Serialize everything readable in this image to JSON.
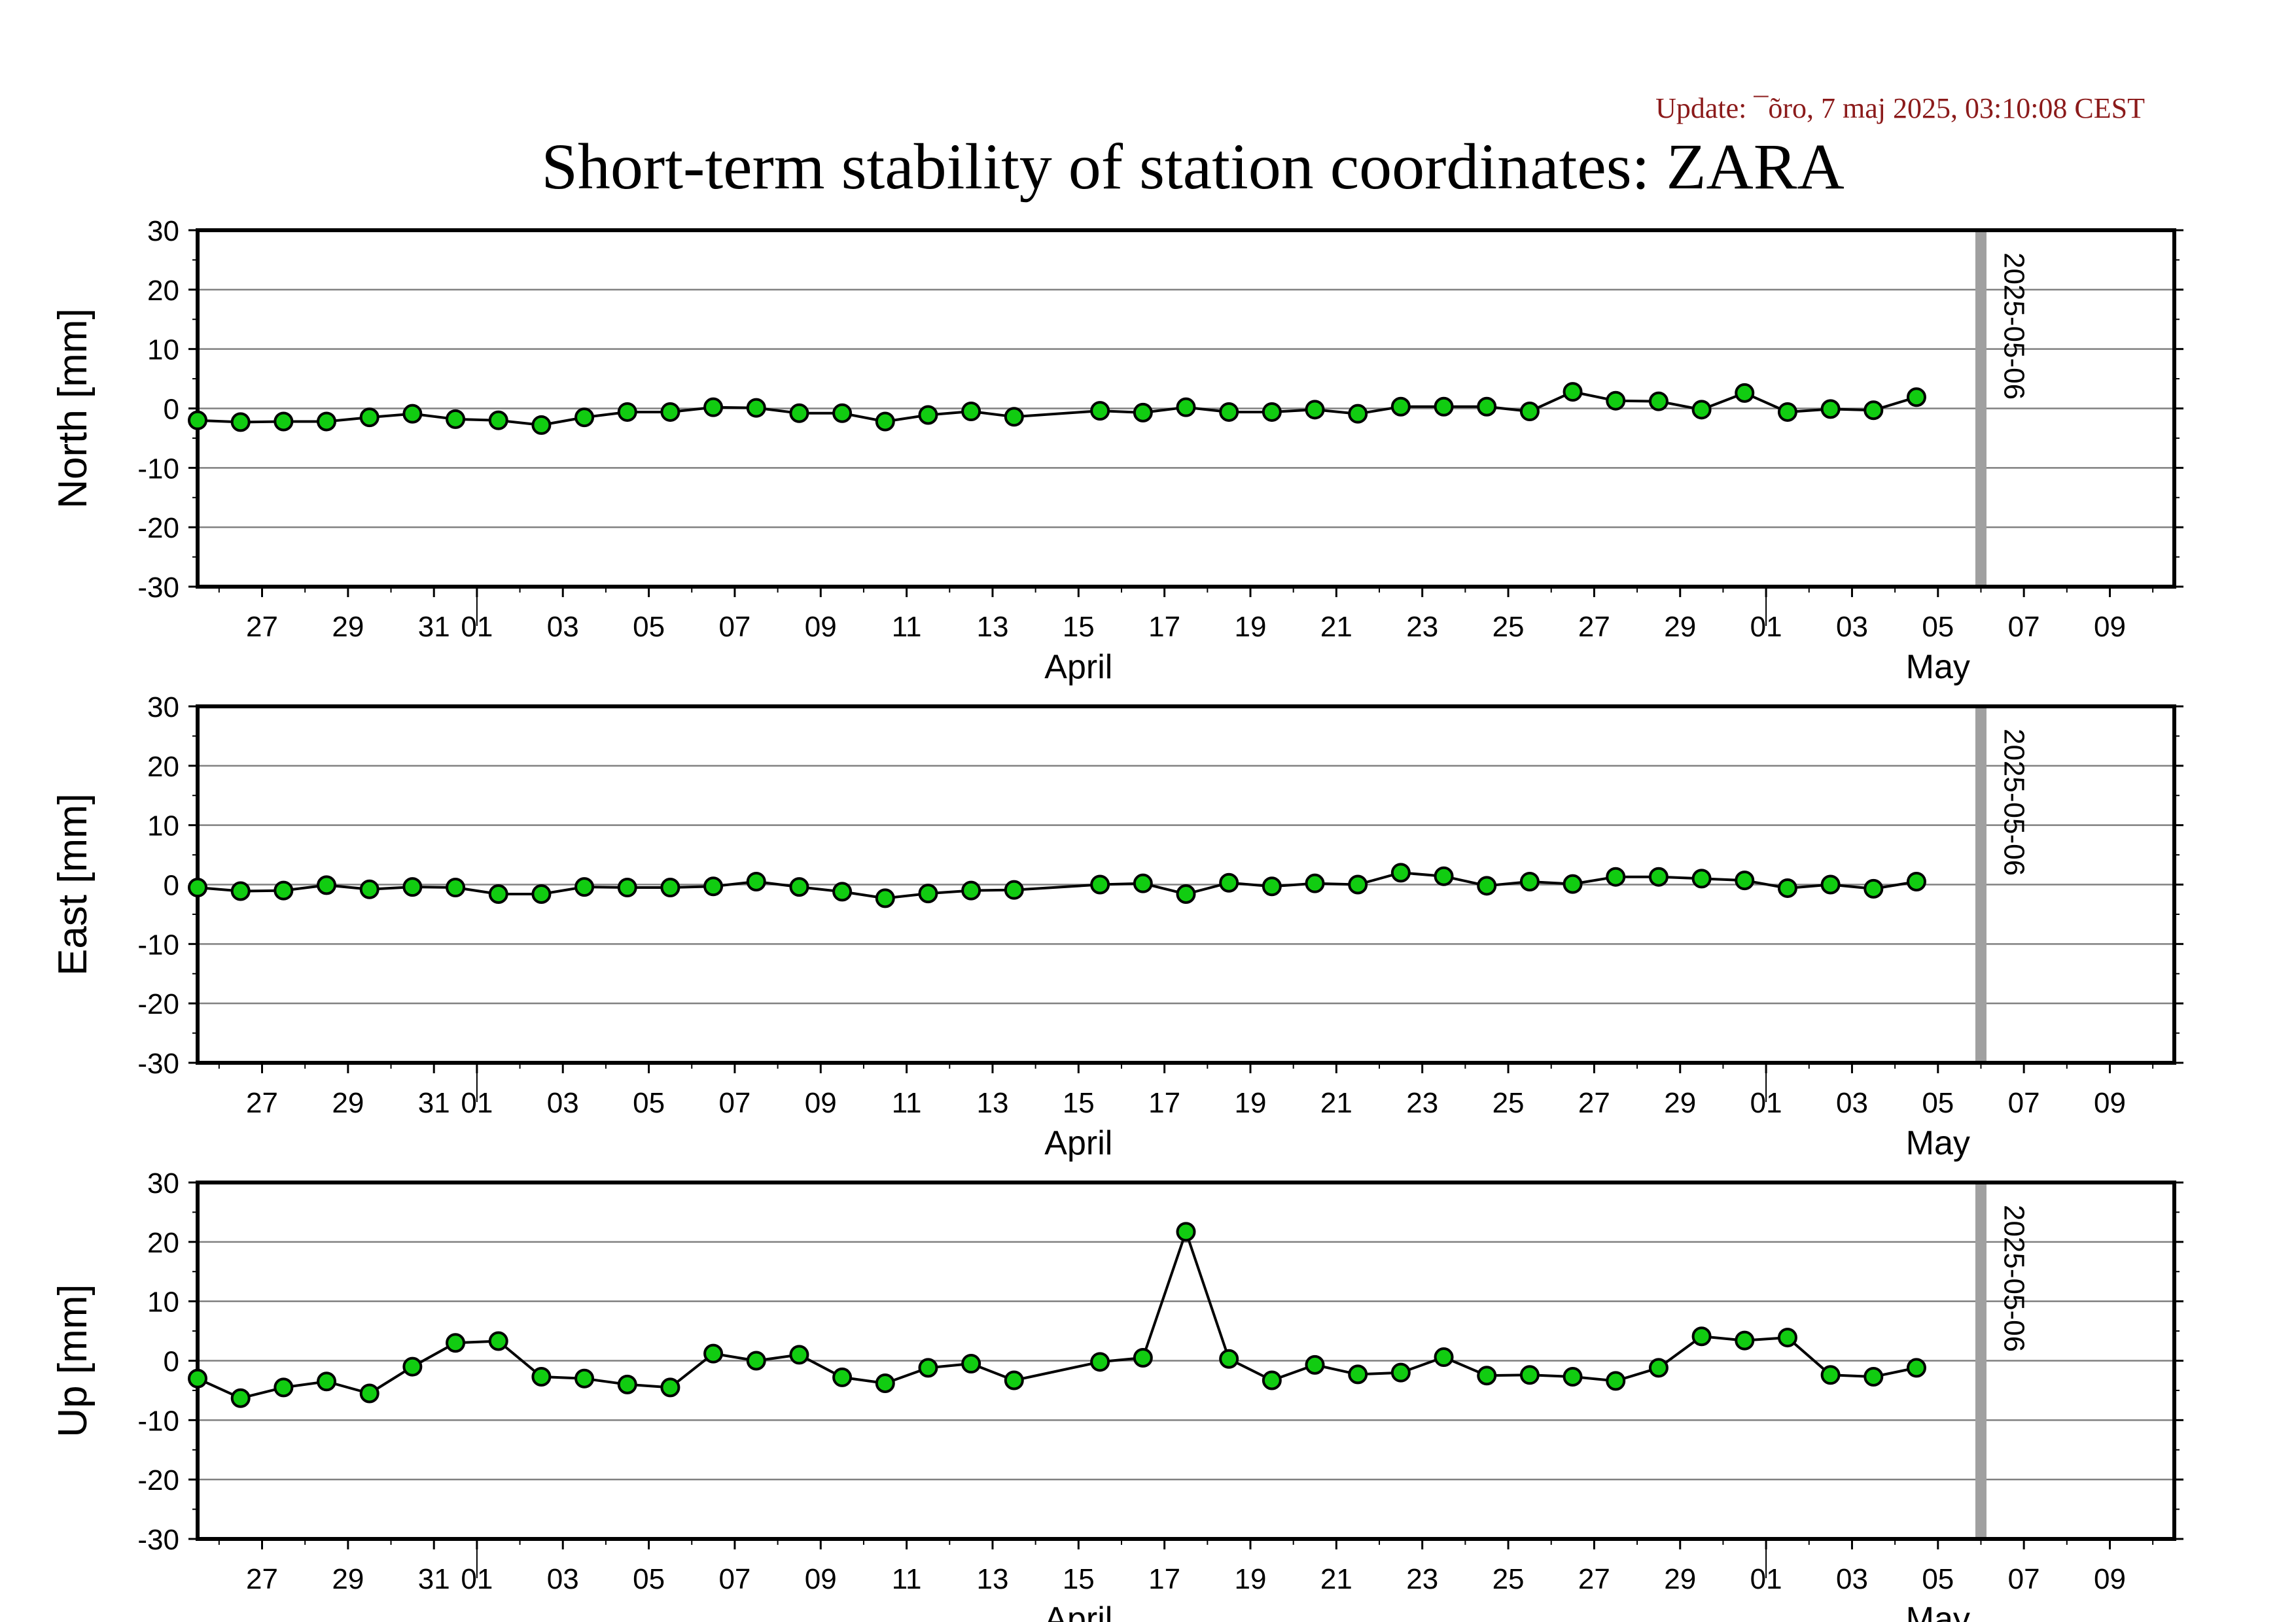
{
  "update_text": "Update: ¯õro, 7 maj 2025, 03:10:08 CEST",
  "colors": {
    "update_text": "#8b1a1a",
    "marker_fill": "#11cc11",
    "marker_stroke": "#000000",
    "line": "#000000",
    "gridline": "#808080",
    "reference_line": "#a0a0a0",
    "frame": "#000000"
  },
  "chart_data": {
    "type": "line",
    "title": "Short-term stability of station coordinates: ZARA",
    "station": "ZARA",
    "reference_date": "2025-05-06",
    "reference_label": "2025-05-06",
    "x_type": "date",
    "xlim": [
      "2025-03-25T12:00",
      "2025-05-10T12:00"
    ],
    "ylim": [
      -30,
      30
    ],
    "yticks": [
      -30,
      -20,
      -10,
      0,
      10,
      20,
      30
    ],
    "xticks": [
      {
        "date": "2025-03-27",
        "label": "27"
      },
      {
        "date": "2025-03-29",
        "label": "29"
      },
      {
        "date": "2025-03-31",
        "label": "31"
      },
      {
        "date": "2025-04-01",
        "label": "01"
      },
      {
        "date": "2025-04-03",
        "label": "03"
      },
      {
        "date": "2025-04-05",
        "label": "05"
      },
      {
        "date": "2025-04-07",
        "label": "07"
      },
      {
        "date": "2025-04-09",
        "label": "09"
      },
      {
        "date": "2025-04-11",
        "label": "11"
      },
      {
        "date": "2025-04-13",
        "label": "13"
      },
      {
        "date": "2025-04-15",
        "label": "15"
      },
      {
        "date": "2025-04-17",
        "label": "17"
      },
      {
        "date": "2025-04-19",
        "label": "19"
      },
      {
        "date": "2025-04-21",
        "label": "21"
      },
      {
        "date": "2025-04-23",
        "label": "23"
      },
      {
        "date": "2025-04-25",
        "label": "25"
      },
      {
        "date": "2025-04-27",
        "label": "27"
      },
      {
        "date": "2025-04-29",
        "label": "29"
      },
      {
        "date": "2025-05-01",
        "label": "01"
      },
      {
        "date": "2025-05-03",
        "label": "03"
      },
      {
        "date": "2025-05-05",
        "label": "05"
      },
      {
        "date": "2025-05-07",
        "label": "07"
      },
      {
        "date": "2025-05-09",
        "label": "09"
      }
    ],
    "month_boundaries": [
      "2025-04-01",
      "2025-05-01"
    ],
    "month_labels": [
      {
        "label": "April",
        "date": "2025-04-15"
      },
      {
        "label": "May",
        "date": "2025-05-05"
      }
    ],
    "grid": "horizontal",
    "panels": [
      {
        "ylabel": "North [mm]",
        "points": [
          [
            "2025-03-25T12:00",
            -2.0
          ],
          [
            "2025-03-26T12:00",
            -2.3
          ],
          [
            "2025-03-27T12:00",
            -2.2
          ],
          [
            "2025-03-28T12:00",
            -2.2
          ],
          [
            "2025-03-29T12:00",
            -1.5
          ],
          [
            "2025-03-30T12:00",
            -0.9
          ],
          [
            "2025-03-31T12:00",
            -1.8
          ],
          [
            "2025-04-01T12:00",
            -2.0
          ],
          [
            "2025-04-02T12:00",
            -2.8
          ],
          [
            "2025-04-03T12:00",
            -1.5
          ],
          [
            "2025-04-04T12:00",
            -0.6
          ],
          [
            "2025-04-05T12:00",
            -0.6
          ],
          [
            "2025-04-06T12:00",
            0.2
          ],
          [
            "2025-04-07T12:00",
            0.1
          ],
          [
            "2025-04-08T12:00",
            -0.8
          ],
          [
            "2025-04-09T12:00",
            -0.8
          ],
          [
            "2025-04-10T12:00",
            -2.2
          ],
          [
            "2025-04-11T12:00",
            -1.1
          ],
          [
            "2025-04-12T12:00",
            -0.5
          ],
          [
            "2025-04-13T12:00",
            -1.4
          ],
          [
            "2025-04-15T12:00",
            -0.4
          ],
          [
            "2025-04-16T12:00",
            -0.7
          ],
          [
            "2025-04-17T12:00",
            0.2
          ],
          [
            "2025-04-18T12:00",
            -0.6
          ],
          [
            "2025-04-19T12:00",
            -0.6
          ],
          [
            "2025-04-20T12:00",
            -0.2
          ],
          [
            "2025-04-21T12:00",
            -0.9
          ],
          [
            "2025-04-22T12:00",
            0.3
          ],
          [
            "2025-04-23T12:00",
            0.3
          ],
          [
            "2025-04-24T12:00",
            0.3
          ],
          [
            "2025-04-25T12:00",
            -0.5
          ],
          [
            "2025-04-26T12:00",
            2.8
          ],
          [
            "2025-04-27T12:00",
            1.3
          ],
          [
            "2025-04-28T12:00",
            1.2
          ],
          [
            "2025-04-29T12:00",
            -0.2
          ],
          [
            "2025-04-30T12:00",
            2.6
          ],
          [
            "2025-05-01T12:00",
            -0.6
          ],
          [
            "2025-05-02T12:00",
            -0.1
          ],
          [
            "2025-05-03T12:00",
            -0.3
          ],
          [
            "2025-05-04T12:00",
            1.9
          ]
        ]
      },
      {
        "ylabel": "East [mm]",
        "points": [
          [
            "2025-03-25T12:00",
            -0.5
          ],
          [
            "2025-03-26T12:00",
            -1.1
          ],
          [
            "2025-03-27T12:00",
            -1.0
          ],
          [
            "2025-03-28T12:00",
            -0.1
          ],
          [
            "2025-03-29T12:00",
            -0.8
          ],
          [
            "2025-03-30T12:00",
            -0.4
          ],
          [
            "2025-03-31T12:00",
            -0.5
          ],
          [
            "2025-04-01T12:00",
            -1.6
          ],
          [
            "2025-04-02T12:00",
            -1.6
          ],
          [
            "2025-04-03T12:00",
            -0.4
          ],
          [
            "2025-04-04T12:00",
            -0.5
          ],
          [
            "2025-04-05T12:00",
            -0.5
          ],
          [
            "2025-04-06T12:00",
            -0.3
          ],
          [
            "2025-04-07T12:00",
            0.5
          ],
          [
            "2025-04-08T12:00",
            -0.4
          ],
          [
            "2025-04-09T12:00",
            -1.2
          ],
          [
            "2025-04-10T12:00",
            -2.3
          ],
          [
            "2025-04-11T12:00",
            -1.5
          ],
          [
            "2025-04-12T12:00",
            -1.0
          ],
          [
            "2025-04-13T12:00",
            -0.9
          ],
          [
            "2025-04-15T12:00",
            0.0
          ],
          [
            "2025-04-16T12:00",
            0.2
          ],
          [
            "2025-04-17T12:00",
            -1.6
          ],
          [
            "2025-04-18T12:00",
            0.3
          ],
          [
            "2025-04-19T12:00",
            -0.3
          ],
          [
            "2025-04-20T12:00",
            0.2
          ],
          [
            "2025-04-21T12:00",
            0.0
          ],
          [
            "2025-04-22T12:00",
            2.0
          ],
          [
            "2025-04-23T12:00",
            1.4
          ],
          [
            "2025-04-24T12:00",
            -0.2
          ],
          [
            "2025-04-25T12:00",
            0.5
          ],
          [
            "2025-04-26T12:00",
            0.1
          ],
          [
            "2025-04-27T12:00",
            1.3
          ],
          [
            "2025-04-28T12:00",
            1.3
          ],
          [
            "2025-04-29T12:00",
            1.0
          ],
          [
            "2025-04-30T12:00",
            0.7
          ],
          [
            "2025-05-01T12:00",
            -0.6
          ],
          [
            "2025-05-02T12:00",
            0.0
          ],
          [
            "2025-05-03T12:00",
            -0.7
          ],
          [
            "2025-05-04T12:00",
            0.5
          ]
        ]
      },
      {
        "ylabel": "Up [mm]",
        "points": [
          [
            "2025-03-25T12:00",
            -3.0
          ],
          [
            "2025-03-26T12:00",
            -6.3
          ],
          [
            "2025-03-27T12:00",
            -4.5
          ],
          [
            "2025-03-28T12:00",
            -3.5
          ],
          [
            "2025-03-29T12:00",
            -5.5
          ],
          [
            "2025-03-30T12:00",
            -1.0
          ],
          [
            "2025-03-31T12:00",
            3.0
          ],
          [
            "2025-04-01T12:00",
            3.3
          ],
          [
            "2025-04-02T12:00",
            -2.7
          ],
          [
            "2025-04-03T12:00",
            -3.0
          ],
          [
            "2025-04-04T12:00",
            -4.0
          ],
          [
            "2025-04-05T12:00",
            -4.5
          ],
          [
            "2025-04-06T12:00",
            1.2
          ],
          [
            "2025-04-07T12:00",
            0.0
          ],
          [
            "2025-04-08T12:00",
            1.0
          ],
          [
            "2025-04-09T12:00",
            -2.8
          ],
          [
            "2025-04-10T12:00",
            -3.8
          ],
          [
            "2025-04-11T12:00",
            -1.2
          ],
          [
            "2025-04-12T12:00",
            -0.5
          ],
          [
            "2025-04-13T12:00",
            -3.3
          ],
          [
            "2025-04-15T12:00",
            -0.2
          ],
          [
            "2025-04-16T12:00",
            0.5
          ],
          [
            "2025-04-17T12:00",
            21.7
          ],
          [
            "2025-04-18T12:00",
            0.3
          ],
          [
            "2025-04-19T12:00",
            -3.3
          ],
          [
            "2025-04-20T12:00",
            -0.7
          ],
          [
            "2025-04-21T12:00",
            -2.3
          ],
          [
            "2025-04-22T12:00",
            -2.0
          ],
          [
            "2025-04-23T12:00",
            0.6
          ],
          [
            "2025-04-24T12:00",
            -2.5
          ],
          [
            "2025-04-25T12:00",
            -2.4
          ],
          [
            "2025-04-26T12:00",
            -2.7
          ],
          [
            "2025-04-27T12:00",
            -3.4
          ],
          [
            "2025-04-28T12:00",
            -1.2
          ],
          [
            "2025-04-29T12:00",
            4.1
          ],
          [
            "2025-04-30T12:00",
            3.4
          ],
          [
            "2025-05-01T12:00",
            3.9
          ],
          [
            "2025-05-02T12:00",
            -2.4
          ],
          [
            "2025-05-03T12:00",
            -2.7
          ],
          [
            "2025-05-04T12:00",
            -1.2
          ]
        ]
      }
    ]
  }
}
